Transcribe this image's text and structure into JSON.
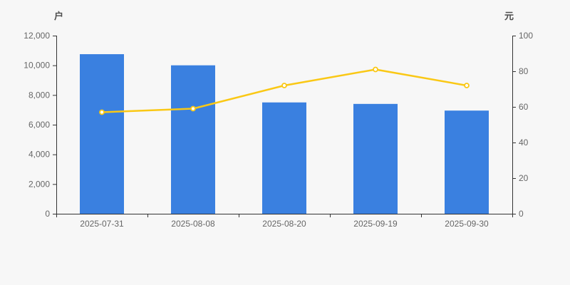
{
  "chart_data": {
    "type": "bar",
    "subtype": "bar+line dual axis",
    "categories": [
      "2025-07-31",
      "2025-08-08",
      "2025-08-20",
      "2025-09-19",
      "2025-09-30"
    ],
    "series": [
      {
        "name": "households-bar",
        "type": "bar",
        "axis": "left",
        "unit": "户",
        "values": [
          10750,
          10000,
          7500,
          7400,
          6950
        ]
      },
      {
        "name": "price-line",
        "type": "line",
        "axis": "right",
        "unit": "元",
        "values": [
          57,
          59,
          72,
          81,
          72
        ]
      }
    ],
    "title": "",
    "xlabel": "",
    "left_axis": {
      "name": "户",
      "min": 0,
      "max": 12000,
      "step": 2000,
      "tick_labels": [
        "0",
        "2,000",
        "4,000",
        "6,000",
        "8,000",
        "10,000",
        "12,000"
      ]
    },
    "right_axis": {
      "name": "元",
      "min": 0,
      "max": 100,
      "step": 20,
      "tick_labels": [
        "0",
        "20",
        "40",
        "60",
        "80",
        "100"
      ]
    },
    "grid": false,
    "legend": "none",
    "colors": {
      "background": "#f7f7f7",
      "bar": "#3a80e0",
      "line": "#fac815",
      "marker_fill": "#ffffff",
      "axis_line": "#333333",
      "tick_label": "#666666",
      "axis_name": "#4d4d4d"
    }
  }
}
